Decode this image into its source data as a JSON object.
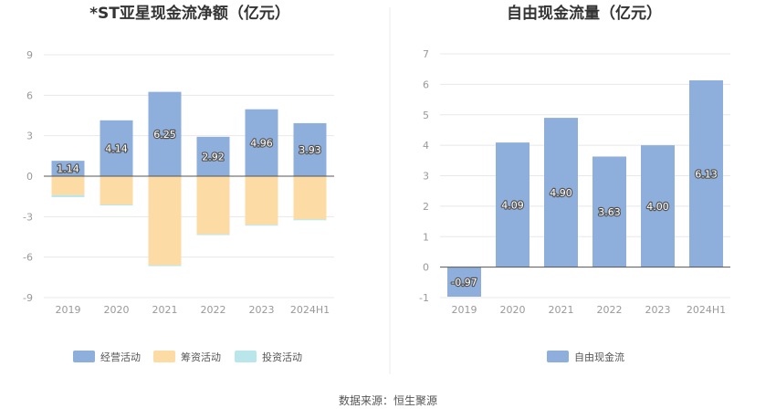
{
  "colors": {
    "operating": "#8eaedc",
    "financing": "#fcdba4",
    "investing": "#b9e6ea",
    "free_cash_flow": "#8eaedc",
    "grid": "#e8e8e8",
    "zero_axis": "#555555"
  },
  "source_text": "数据来源：恒生聚源",
  "chart_data": [
    {
      "type": "bar",
      "title": "*ST亚星现金流净额（亿元）",
      "categories": [
        "2019",
        "2020",
        "2021",
        "2022",
        "2023",
        "2024H1"
      ],
      "ylim": [
        -9,
        9
      ],
      "yticks": [
        -9,
        -6,
        -3,
        0,
        3,
        6,
        9
      ],
      "grid": true,
      "legend_position": "bottom",
      "stacked": true,
      "series": [
        {
          "name": "经营活动",
          "color": "#8eaedc",
          "values": [
            1.14,
            4.14,
            6.25,
            2.92,
            4.96,
            3.93
          ],
          "labels": [
            "1.14",
            "4.14",
            "6.25",
            "2.92",
            "4.96",
            "3.93"
          ]
        },
        {
          "name": "筹资活动",
          "color": "#fcdba4",
          "values": [
            -1.4,
            -2.1,
            -6.6,
            -4.3,
            -3.6,
            -3.2
          ]
        },
        {
          "name": "投资活动",
          "color": "#b9e6ea",
          "values": [
            -0.15,
            -0.05,
            -0.05,
            -0.02,
            -0.05,
            -0.02
          ]
        }
      ]
    },
    {
      "type": "bar",
      "title": "自由现金流量（亿元）",
      "categories": [
        "2019",
        "2020",
        "2021",
        "2022",
        "2023",
        "2024H1"
      ],
      "ylim": [
        -1,
        7
      ],
      "yticks": [
        -1,
        0,
        1,
        2,
        3,
        4,
        5,
        6,
        7
      ],
      "grid": true,
      "legend_position": "bottom",
      "stacked": false,
      "series": [
        {
          "name": "自由现金流",
          "color": "#8eaedc",
          "values": [
            -0.97,
            4.09,
            4.9,
            3.63,
            4.0,
            6.13
          ],
          "labels": [
            "-0.97",
            "4.09",
            "4.90",
            "3.63",
            "4.00",
            "6.13"
          ]
        }
      ]
    }
  ]
}
